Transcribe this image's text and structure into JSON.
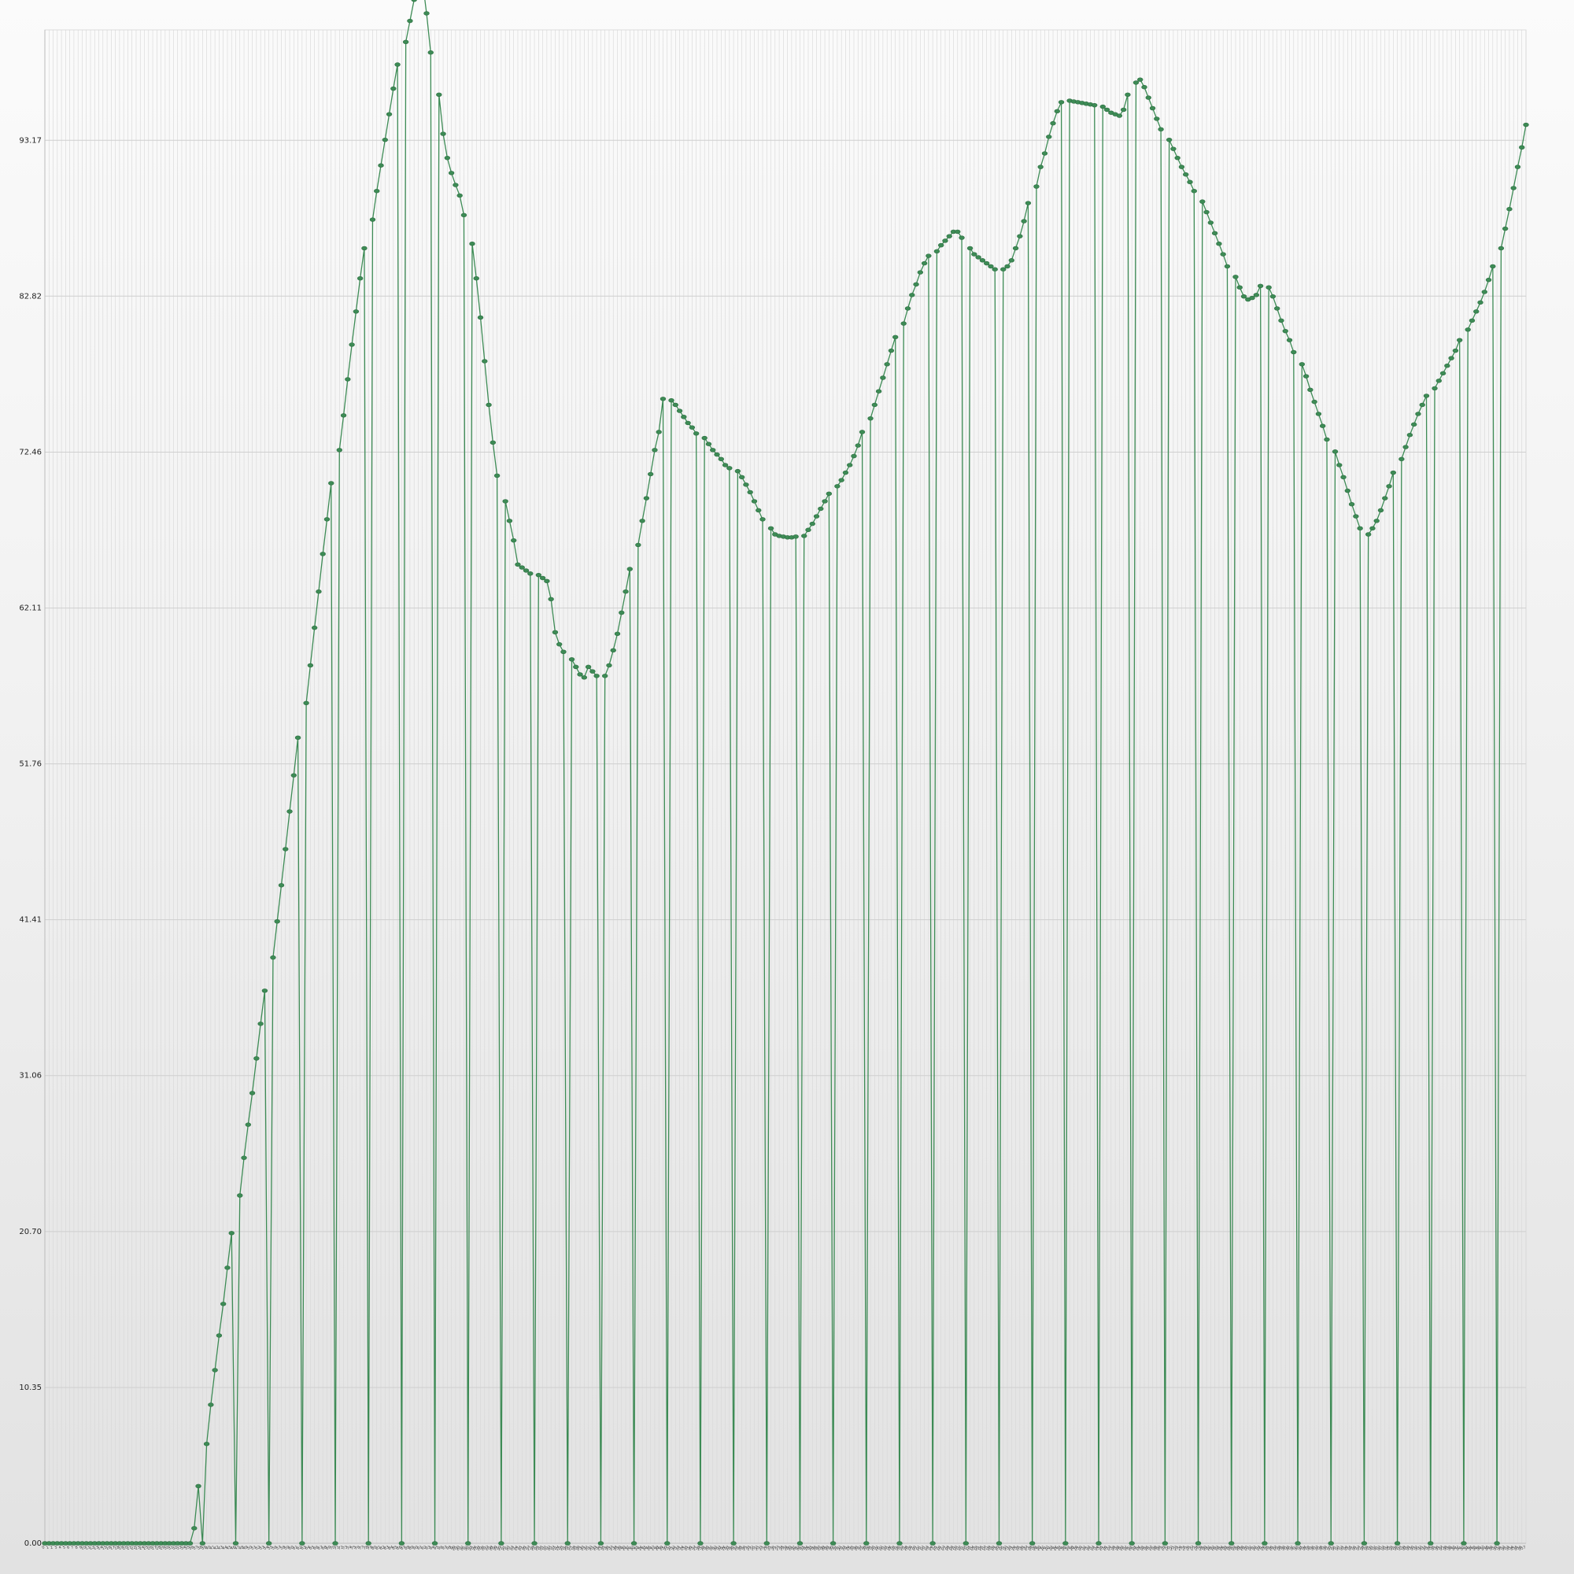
{
  "chart_data": {
    "type": "line",
    "title": "",
    "xlabel": "",
    "ylabel": "",
    "ylim": [
      0,
      100.5
    ],
    "y_ticks": [
      "0.00",
      "10.35",
      "20.70",
      "31.06",
      "41.41",
      "51.76",
      "62.11",
      "72.46",
      "82.82",
      "93.17"
    ],
    "grid": true,
    "x_tick_labels": "dense, illegible",
    "series": [
      {
        "color": "#3d8b55",
        "style": "line with oval markers; every 8th point drops to 0 (drop lines)",
        "values": [
          0,
          0,
          0,
          0,
          0,
          0,
          0,
          0,
          0,
          0,
          0,
          0,
          0,
          0,
          0,
          0,
          0,
          0,
          0,
          0,
          0,
          0,
          0,
          0,
          0,
          0,
          0,
          0,
          0,
          0,
          0,
          0,
          0,
          0,
          0,
          0,
          1.0,
          3.8,
          0,
          6.6,
          9.2,
          11.5,
          13.8,
          15.9,
          18.3,
          20.6,
          0,
          23.1,
          25.6,
          27.8,
          29.9,
          32.2,
          34.5,
          36.7,
          0,
          38.9,
          41.3,
          43.7,
          46.1,
          48.6,
          51.0,
          53.5,
          0,
          55.8,
          58.3,
          60.8,
          63.2,
          65.7,
          68.0,
          70.4,
          0,
          72.6,
          74.9,
          77.3,
          79.6,
          81.8,
          84.0,
          86.0,
          0,
          87.9,
          89.8,
          91.5,
          93.2,
          94.9,
          96.6,
          98.2,
          0,
          99.7,
          101.1,
          102.5,
          103.9,
          103.8,
          101.6,
          99.0,
          0,
          96.2,
          93.6,
          92.0,
          91.0,
          90.2,
          89.5,
          88.2,
          0,
          86.3,
          84.0,
          81.4,
          78.5,
          75.6,
          73.1,
          70.9,
          0,
          69.2,
          67.9,
          66.6,
          65.0,
          64.8,
          64.6,
          64.4,
          0,
          64.3,
          64.1,
          63.9,
          62.7,
          60.5,
          59.7,
          59.2,
          0,
          58.7,
          58.2,
          57.7,
          57.5,
          58.2,
          57.9,
          57.6,
          0,
          57.6,
          58.3,
          59.3,
          60.4,
          61.8,
          63.2,
          64.7,
          0,
          66.3,
          67.9,
          69.4,
          71.0,
          72.6,
          73.8,
          76.0,
          0,
          75.9,
          75.6,
          75.2,
          74.8,
          74.4,
          74.1,
          73.7,
          0,
          73.4,
          73.0,
          72.6,
          72.3,
          72.0,
          71.6,
          71.4,
          0,
          71.2,
          70.8,
          70.3,
          69.8,
          69.2,
          68.6,
          68.0,
          0,
          67.4,
          67.0,
          66.9,
          66.85,
          66.8,
          66.8,
          66.85,
          0,
          66.9,
          67.3,
          67.7,
          68.2,
          68.7,
          69.2,
          69.7,
          0,
          70.2,
          70.6,
          71.1,
          71.6,
          72.2,
          72.9,
          73.8,
          0,
          74.7,
          75.6,
          76.5,
          77.4,
          78.3,
          79.2,
          80.1,
          0,
          81.0,
          82.0,
          82.9,
          83.6,
          84.4,
          85.0,
          85.5,
          0,
          85.8,
          86.2,
          86.5,
          86.8,
          87.1,
          87.1,
          86.7,
          0,
          86.0,
          85.6,
          85.4,
          85.2,
          85.0,
          84.8,
          84.6,
          0,
          84.6,
          84.8,
          85.2,
          86.0,
          86.8,
          87.8,
          89.0,
          0,
          90.1,
          91.4,
          92.3,
          93.4,
          94.3,
          95.1,
          95.7,
          0,
          95.8,
          95.75,
          95.7,
          95.65,
          95.6,
          95.55,
          95.5,
          0,
          95.4,
          95.2,
          95.0,
          94.9,
          94.8,
          95.2,
          96.2,
          0,
          97.0,
          97.2,
          96.7,
          96.0,
          95.3,
          94.6,
          93.9,
          0,
          93.2,
          92.6,
          92.0,
          91.4,
          90.9,
          90.4,
          89.8,
          0,
          89.1,
          88.4,
          87.7,
          87.0,
          86.3,
          85.6,
          84.8,
          0,
          84.1,
          83.4,
          82.8,
          82.6,
          82.7,
          82.9,
          83.5,
          0,
          83.4,
          82.8,
          82.0,
          81.2,
          80.5,
          79.9,
          79.1,
          0,
          78.3,
          77.5,
          76.6,
          75.8,
          75.0,
          74.2,
          73.3,
          0,
          72.5,
          71.6,
          70.8,
          69.9,
          69.0,
          68.2,
          67.4,
          0,
          67.0,
          67.4,
          67.9,
          68.6,
          69.4,
          70.2,
          71.1,
          0,
          72.0,
          72.8,
          73.6,
          74.3,
          75.0,
          75.6,
          76.2,
          0,
          76.7,
          77.2,
          77.7,
          78.2,
          78.7,
          79.2,
          79.9,
          0,
          80.6,
          81.2,
          81.8,
          82.4,
          83.1,
          83.9,
          84.8,
          0,
          86.0,
          87.3,
          88.6,
          90.0,
          91.4,
          92.7,
          94.2
        ]
      }
    ]
  }
}
